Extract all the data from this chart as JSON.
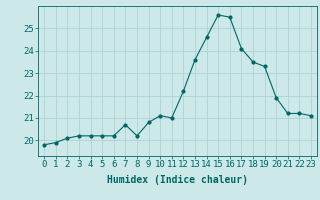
{
  "x": [
    0,
    1,
    2,
    3,
    4,
    5,
    6,
    7,
    8,
    9,
    10,
    11,
    12,
    13,
    14,
    15,
    16,
    17,
    18,
    19,
    20,
    21,
    22,
    23
  ],
  "y": [
    19.8,
    19.9,
    20.1,
    20.2,
    20.2,
    20.2,
    20.2,
    20.7,
    20.2,
    20.8,
    21.1,
    21.0,
    22.2,
    23.6,
    24.6,
    25.6,
    25.5,
    24.1,
    23.5,
    23.3,
    21.9,
    21.2,
    21.2,
    21.1
  ],
  "line_color": "#006666",
  "marker": "o",
  "marker_size": 2,
  "bg_color": "#cce8e8",
  "grid_color": "#aacece",
  "tick_color": "#006666",
  "label_color": "#006666",
  "xlabel": "Humidex (Indice chaleur)",
  "xlim": [
    -0.5,
    23.5
  ],
  "ylim": [
    19.3,
    26.0
  ],
  "yticks": [
    20,
    21,
    22,
    23,
    24,
    25
  ],
  "xticks": [
    0,
    1,
    2,
    3,
    4,
    5,
    6,
    7,
    8,
    9,
    10,
    11,
    12,
    13,
    14,
    15,
    16,
    17,
    18,
    19,
    20,
    21,
    22,
    23
  ],
  "xlabel_fontsize": 7,
  "tick_fontsize": 6.5
}
